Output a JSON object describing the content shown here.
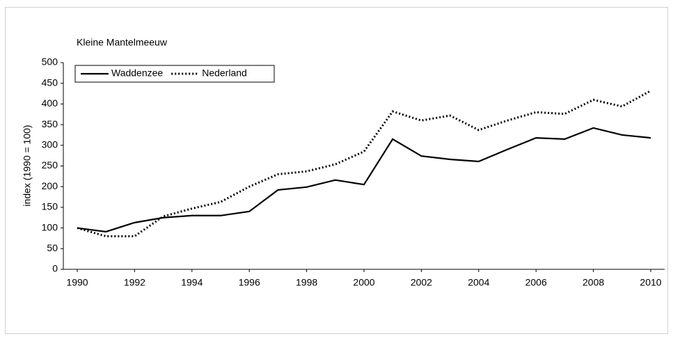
{
  "chart_data": {
    "type": "line",
    "title": "Kleine Mantelmeeuw",
    "y_label": "index (1990 = 100)",
    "x": [
      1990,
      1991,
      1992,
      1993,
      1994,
      1995,
      1996,
      1997,
      1998,
      1999,
      2000,
      2001,
      2002,
      2003,
      2004,
      2005,
      2006,
      2007,
      2008,
      2009,
      2010
    ],
    "series": [
      {
        "name": "Waddenzee",
        "color": "#000000",
        "style": "solid",
        "values": [
          100,
          91,
          113,
          125,
          130,
          130,
          140,
          192,
          199,
          216,
          205,
          315,
          274,
          266,
          261,
          290,
          318,
          315,
          342,
          325,
          318
        ]
      },
      {
        "name": "Nederland",
        "color": "#000000",
        "style": "dotted",
        "values": [
          100,
          80,
          80,
          128,
          147,
          163,
          200,
          230,
          237,
          254,
          285,
          382,
          360,
          372,
          337,
          360,
          380,
          376,
          410,
          394,
          432
        ]
      }
    ],
    "xlim": [
      1990,
      2010
    ],
    "xticks": [
      1990,
      1992,
      1994,
      1996,
      1998,
      2000,
      2002,
      2004,
      2006,
      2008,
      2010
    ],
    "ylim": [
      0,
      500
    ],
    "yticks": [
      0,
      50,
      100,
      150,
      200,
      250,
      300,
      350,
      400,
      450,
      500
    ],
    "legend": "top-left"
  }
}
